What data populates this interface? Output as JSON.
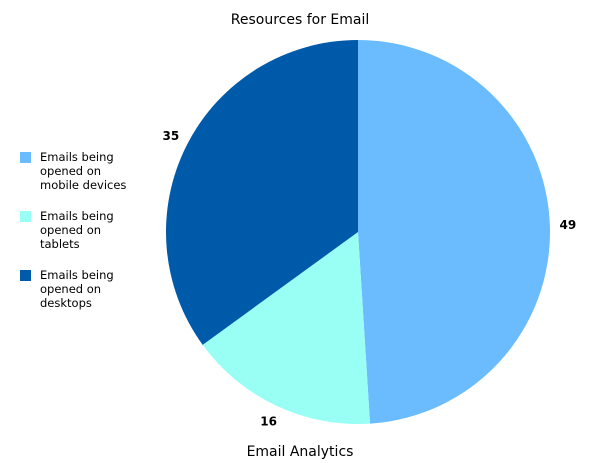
{
  "chart_data": {
    "type": "pie",
    "title": "Resources for Email",
    "xlabel": "Email Analytics",
    "legend_position": "left",
    "slices": [
      {
        "label": "Emails being opened on mobile devices",
        "value": 49,
        "color": "#6bbbff"
      },
      {
        "label": "Emails being opened on tablets",
        "value": 16,
        "color": "#99fff5"
      },
      {
        "label": "Emails being opened on desktops",
        "value": 35,
        "color": "#005aaa"
      }
    ]
  }
}
